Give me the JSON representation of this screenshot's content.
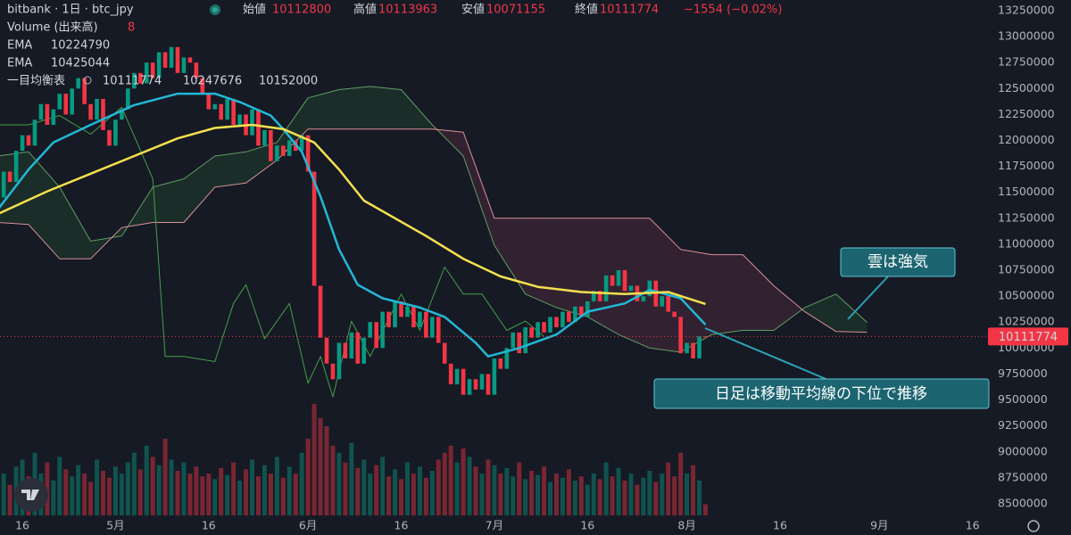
{
  "chart_data": {
    "type": "candlestick",
    "header": {
      "symbol": "bitbank · 1日 · btc_jpy",
      "fields": [
        {
          "label": "始値",
          "value": 10112800
        },
        {
          "label": "高値",
          "value": 10113963
        },
        {
          "label": "安値",
          "value": 10071155
        },
        {
          "label": "終値",
          "value": 10111774
        }
      ],
      "change": "−1554 (−0.02%)"
    },
    "xlim": [
      0.4,
      159.2
    ],
    "xticks": [
      {
        "value": 4,
        "label": "16"
      },
      {
        "value": 19,
        "label": "5月"
      },
      {
        "value": 34,
        "label": "16"
      },
      {
        "value": 50,
        "label": "6月"
      },
      {
        "value": 65,
        "label": "16"
      },
      {
        "value": 80,
        "label": "7月"
      },
      {
        "value": 95,
        "label": "16"
      },
      {
        "value": 111,
        "label": "8月"
      },
      {
        "value": 126,
        "label": "16"
      },
      {
        "value": 142,
        "label": "9月"
      },
      {
        "value": 157,
        "label": "16"
      }
    ],
    "ylim": [
      8388000,
      13353000
    ],
    "yticks": [
      8500000,
      8750000,
      9000000,
      9250000,
      9500000,
      9750000,
      10000000,
      10250000,
      10500000,
      10750000,
      11000000,
      11250000,
      11500000,
      11750000,
      12000000,
      12250000,
      12500000,
      12750000,
      13000000,
      13250000
    ],
    "grid": false,
    "candles": {
      "up_color": "#089981",
      "down_color": "#f23645",
      "x": [
        0,
        1,
        2,
        3,
        4,
        5,
        6,
        7,
        8,
        9,
        10,
        11,
        12,
        13,
        14,
        15,
        16,
        17,
        18,
        19,
        20,
        21,
        22,
        23,
        24,
        25,
        26,
        27,
        28,
        29,
        30,
        31,
        32,
        33,
        34,
        35,
        36,
        37,
        38,
        39,
        40,
        41,
        42,
        43,
        44,
        45,
        46,
        47,
        48,
        49,
        50,
        51,
        52,
        53,
        54,
        55,
        56,
        57,
        58,
        59,
        60,
        61,
        62,
        63,
        64,
        65,
        66,
        67,
        68,
        69,
        70,
        71,
        72,
        73,
        74,
        75,
        76,
        77,
        78,
        79,
        80,
        81,
        82,
        83,
        84,
        85,
        86,
        87,
        88,
        89,
        90,
        91,
        92,
        93,
        94,
        95,
        96,
        97,
        98,
        99,
        100,
        101,
        102,
        103,
        104,
        105,
        106,
        107,
        108,
        109,
        110,
        111,
        112,
        113,
        114
      ],
      "close": [
        11450000,
        11700000,
        11600000,
        11900000,
        12050000,
        11950000,
        12200000,
        12350000,
        12150000,
        12300000,
        12450000,
        12250000,
        12500000,
        12600000,
        12350000,
        12200000,
        12400000,
        12100000,
        11950000,
        12200000,
        12300000,
        12500000,
        12650000,
        12550000,
        12750000,
        12600000,
        12850000,
        12700000,
        12900000,
        12650000,
        12800000,
        12750000,
        12600000,
        12450000,
        12300000,
        12350000,
        12200000,
        12400000,
        12150000,
        12250000,
        12050000,
        12300000,
        11950000,
        12100000,
        11800000,
        11950000,
        11850000,
        12000000,
        11900000,
        12050000,
        11700000,
        10600000,
        10100000,
        9850000,
        9700000,
        10050000,
        9900000,
        10150000,
        9850000,
        10100000,
        10250000,
        10000000,
        10350000,
        10200000,
        10450000,
        10300000,
        10400000,
        10200000,
        10350000,
        10100000,
        10300000,
        10050000,
        9850000,
        9650000,
        9800000,
        9550000,
        9700000,
        9600000,
        9750000,
        9550000,
        9900000,
        9800000,
        10000000,
        10150000,
        9950000,
        10200000,
        10100000,
        10250000,
        10150000,
        10300000,
        10200000,
        10350000,
        10250000,
        10400000,
        10300000,
        10450000,
        10550000,
        10450000,
        10700000,
        10600000,
        10750000,
        10550000,
        10600000,
        10450000,
        10500000,
        10650000,
        10400000,
        10500000,
        10350000,
        10300000,
        9950000,
        10050000,
        9900000,
        10112800,
        10111774
      ]
    },
    "volume": {
      "name": "Volume (出来高)",
      "values": [
        25,
        30,
        22,
        35,
        40,
        28,
        45,
        30,
        38,
        25,
        42,
        33,
        28,
        36,
        30,
        24,
        40,
        32,
        27,
        35,
        30,
        38,
        45,
        33,
        50,
        42,
        36,
        55,
        40,
        32,
        38,
        30,
        35,
        28,
        30,
        26,
        34,
        29,
        38,
        25,
        33,
        40,
        28,
        36,
        30,
        42,
        27,
        35,
        30,
        45,
        55,
        80,
        70,
        64,
        50,
        45,
        38,
        52,
        34,
        40,
        30,
        36,
        42,
        28,
        33,
        26,
        38,
        30,
        35,
        27,
        32,
        40,
        45,
        50,
        38,
        48,
        42,
        35,
        30,
        40,
        36,
        30,
        34,
        28,
        38,
        26,
        32,
        29,
        35,
        24,
        30,
        27,
        33,
        25,
        28,
        22,
        30,
        26,
        38,
        28,
        34,
        25,
        30,
        22,
        27,
        32,
        24,
        30,
        38,
        28,
        45,
        30,
        36,
        25,
        8
      ]
    },
    "ema": [
      {
        "name": "EMA",
        "color": "#22b8d6",
        "x": [
          0,
          5,
          9,
          15,
          22,
          29,
          35,
          39,
          44,
          46,
          49,
          52,
          55,
          58,
          62,
          68,
          72,
          77,
          79,
          84,
          90,
          95,
          101,
          105,
          110,
          114
        ],
        "values": [
          11330000,
          11720000,
          11980000,
          12150000,
          12340000,
          12450000,
          12450000,
          12370000,
          12240000,
          12110000,
          11890000,
          11460000,
          10950000,
          10610000,
          10480000,
          10390000,
          10300000,
          10050000,
          9920000,
          10000000,
          10130000,
          10350000,
          10430000,
          10560000,
          10480000,
          10224790
        ]
      },
      {
        "name": "EMA",
        "color": "#f5e04e",
        "x": [
          0,
          8,
          15,
          22,
          29,
          35,
          41,
          46,
          51,
          55,
          59,
          64,
          69,
          75,
          81,
          87,
          94,
          101,
          108,
          114
        ],
        "values": [
          11290000,
          11510000,
          11680000,
          11850000,
          12020000,
          12120000,
          12150000,
          12110000,
          11980000,
          11720000,
          11420000,
          11250000,
          11080000,
          10860000,
          10690000,
          10590000,
          10540000,
          10520000,
          10540000,
          10425044
        ]
      }
    ],
    "ichimoku": {
      "name": "一目均衡表",
      "cloud_up": "rgba(67, 160, 71, 0.14)",
      "cloud_down": "rgba(200, 80, 110, 0.16)",
      "x": [
        0,
        5,
        10,
        15,
        20,
        25,
        30,
        35,
        40,
        45,
        50,
        55,
        60,
        65,
        70,
        75,
        80,
        85,
        90,
        95,
        100,
        105,
        110,
        115,
        120,
        125,
        130,
        135,
        140
      ],
      "span_a": {
        "color": "#5f9e63",
        "values": [
          11850000,
          11890000,
          11550000,
          11030000,
          11080000,
          11550000,
          11630000,
          11850000,
          11890000,
          11980000,
          12410000,
          12490000,
          12520000,
          12490000,
          12150000,
          11850000,
          10990000,
          10520000,
          10390000,
          10300000,
          10130000,
          10000000,
          9960000,
          10130000,
          10170000,
          10170000,
          10390000,
          10520000,
          10247676
        ]
      },
      "span_b": {
        "color": "#d98f98",
        "values": [
          11210000,
          11190000,
          10860000,
          10860000,
          11160000,
          11210000,
          11210000,
          11550000,
          11590000,
          11810000,
          12110000,
          12110000,
          12110000,
          12110000,
          12110000,
          12080000,
          11250000,
          11250000,
          11250000,
          11250000,
          11250000,
          11250000,
          10950000,
          10900000,
          10900000,
          10600000,
          10350000,
          10160000,
          10152000
        ]
      },
      "lagging": {
        "color": "#43a047",
        "x": [
          0,
          5,
          10,
          15,
          20,
          25,
          27,
          30,
          35,
          38,
          40,
          43,
          47,
          50,
          52,
          54,
          57,
          60,
          65,
          68,
          72,
          75,
          78,
          82,
          85,
          88
        ],
        "values": [
          12150000,
          12150000,
          12240000,
          12060000,
          12320000,
          11630000,
          9920000,
          9920000,
          9870000,
          10430000,
          10610000,
          10090000,
          10430000,
          9660000,
          9920000,
          9530000,
          10260000,
          9920000,
          10520000,
          10170000,
          10780000,
          10520000,
          10520000,
          10170000,
          10260000,
          10111774
        ]
      }
    },
    "annotations": [
      "雲は強気",
      "日足は移動平均線の下位で推移"
    ]
  }
}
